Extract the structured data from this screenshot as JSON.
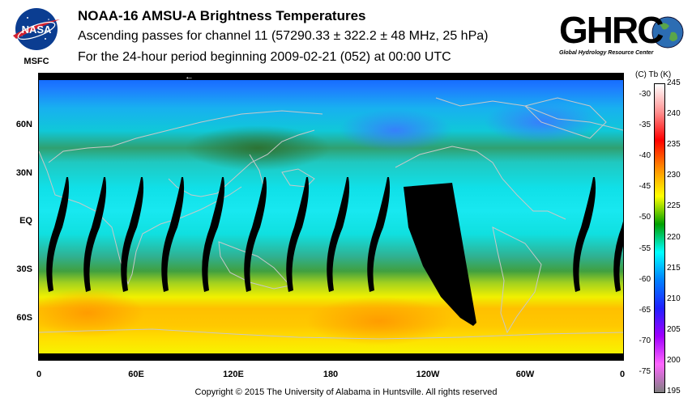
{
  "header": {
    "title": "NOAA-16 AMSU-A Brightness Temperatures",
    "subtitle": "Ascending passes for channel 11 (57290.33 ± 322.2 ± 48 MHz, 25 hPa)",
    "period": "For the 24-hour period beginning 2009-02-21 (052) at 00:00 UTC"
  },
  "logos": {
    "nasa_text": "NASA",
    "msfc_text": "MSFC",
    "ghrc_text": "GHRC",
    "ghrc_sub": "Global Hydrology Resource Center"
  },
  "map": {
    "lat_labels": [
      "60N",
      "30N",
      "EQ",
      "30S",
      "60S"
    ],
    "lon_labels": [
      "0",
      "60E",
      "120E",
      "180",
      "120W",
      "60W",
      "0"
    ],
    "direction_arrow": "←"
  },
  "colorbar": {
    "header": "(C)  Tb  (K)",
    "kelvin_labels": [
      "245",
      "240",
      "235",
      "230",
      "225",
      "220",
      "215",
      "210",
      "205",
      "200",
      "195"
    ],
    "celsius_labels": [
      "-30",
      "-35",
      "-40",
      "-45",
      "-50",
      "-55",
      "-60",
      "-65",
      "-70",
      "-75"
    ],
    "colors": [
      "#ffffff",
      "#ff9090",
      "#ff0000",
      "#ff8c00",
      "#ffff00",
      "#00a000",
      "#00ffff",
      "#0080ff",
      "#2020ff",
      "#a000ff",
      "#ff66ff",
      "#808080"
    ]
  },
  "footer": {
    "copyright": "Copyright © 2015 The University of Alabama in Huntsville.  All rights reserved"
  }
}
